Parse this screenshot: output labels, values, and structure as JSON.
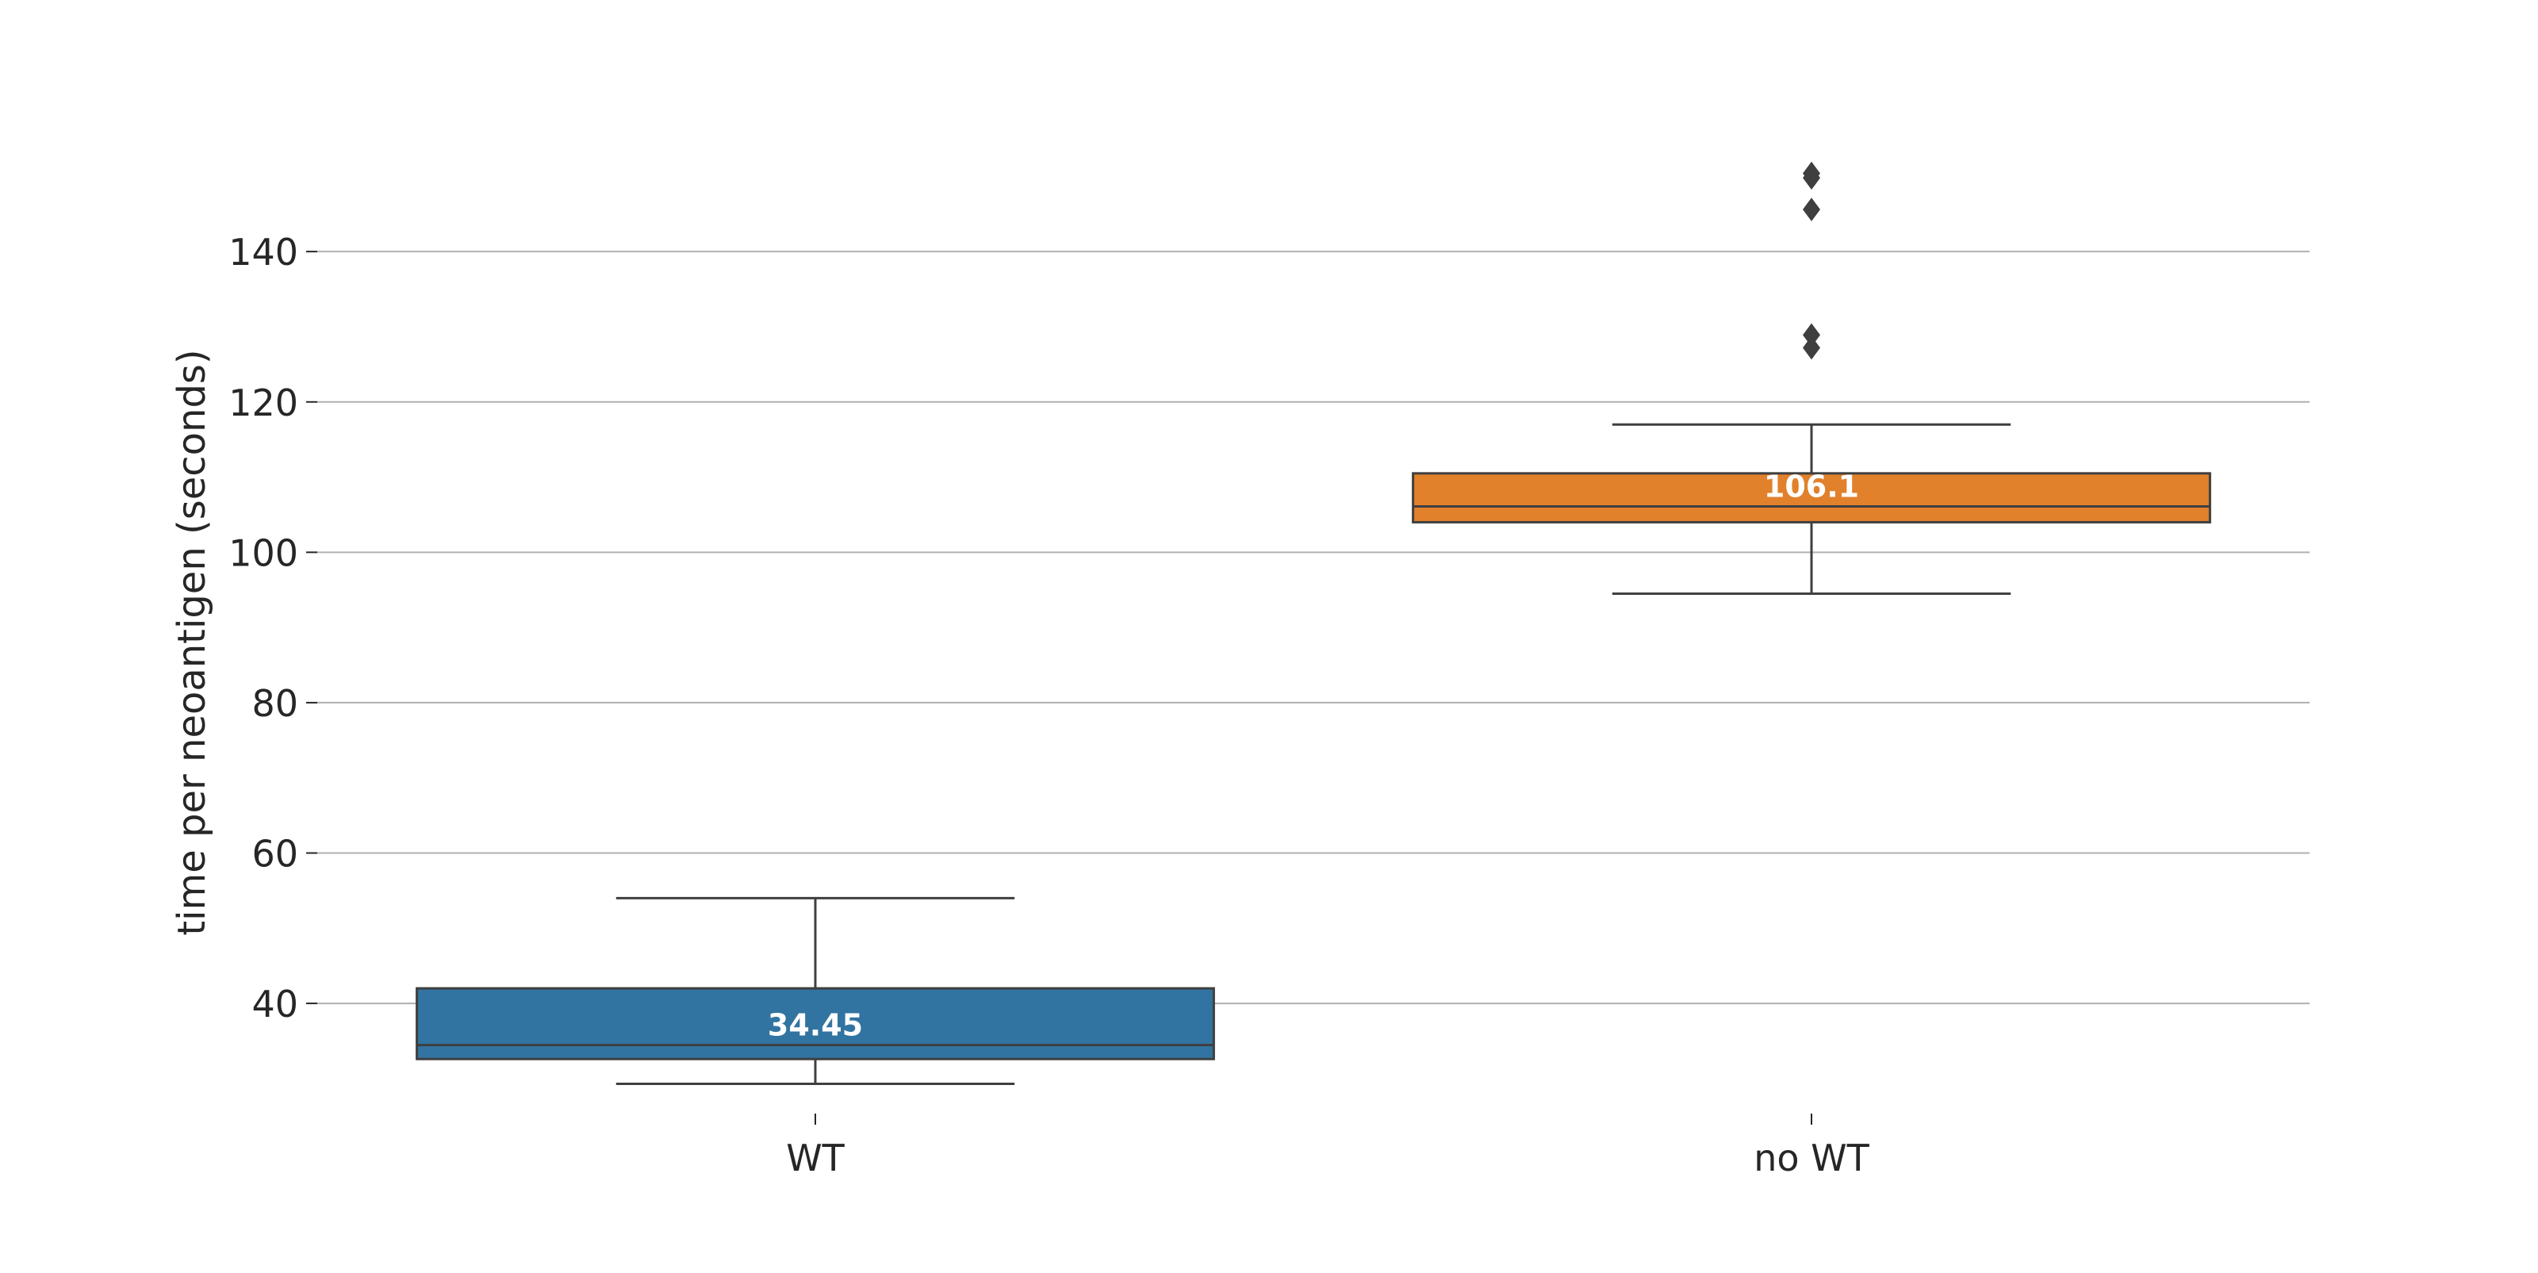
{
  "chart_data": {
    "type": "box",
    "title": "",
    "xlabel": "",
    "ylabel": "time per neoantigen (seconds)",
    "ylim": [
      24.5,
      155
    ],
    "yticks": [
      40,
      60,
      80,
      100,
      120,
      140
    ],
    "grid": "horizontal",
    "categories": [
      "WT",
      "no WT"
    ],
    "boxes": [
      {
        "category": "WT",
        "whisker_low": 29.3,
        "q1": 32.6,
        "median": 34.45,
        "q3": 42.0,
        "whisker_high": 54.0,
        "outliers": [],
        "median_label": "34.45",
        "color": "#3274a1"
      },
      {
        "category": "no WT",
        "whisker_low": 94.5,
        "q1": 104.0,
        "median": 106.1,
        "q3": 110.5,
        "whisker_high": 117.0,
        "outliers": [
          127.2,
          128.9,
          145.6,
          149.8,
          150.4
        ],
        "median_label": "106.1",
        "color": "#e1812c"
      }
    ]
  }
}
